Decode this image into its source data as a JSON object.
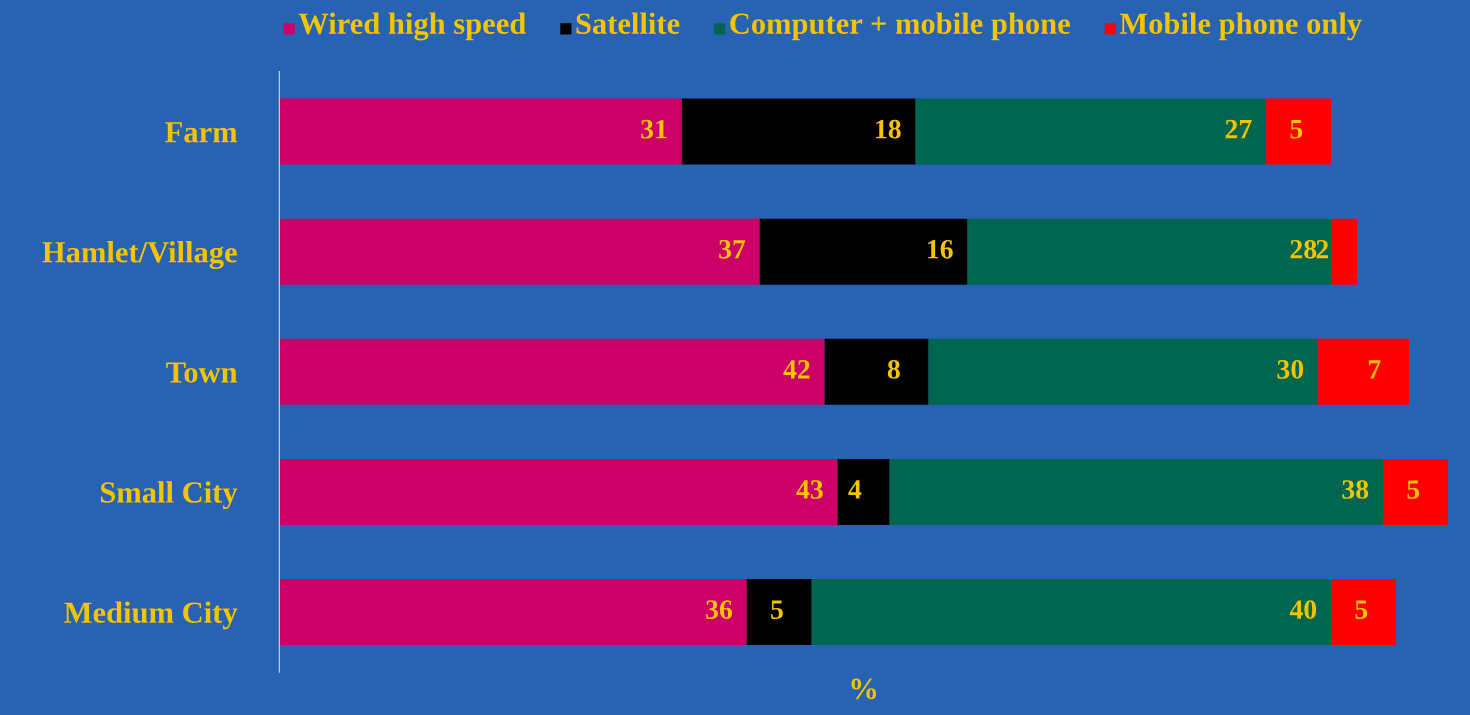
{
  "chart_data": {
    "type": "bar",
    "orientation": "horizontal",
    "stacked": true,
    "data_labels": true,
    "tick_labels": "y",
    "legend": "top",
    "grid": false,
    "xlabel": "%",
    "xlim": [
      0,
      90
    ],
    "categories": [
      "Farm",
      "Hamlet/Village",
      "Town",
      "Small City",
      "Medium City"
    ],
    "series": [
      {
        "name": "Wired high speed",
        "color": "#cc0066",
        "values": [
          31,
          37,
          42,
          43,
          36
        ]
      },
      {
        "name": "Satellite",
        "color": "#000000",
        "values": [
          18,
          16,
          8,
          4,
          5
        ]
      },
      {
        "name": "Computer + mobile phone",
        "color": "#00664f",
        "values": [
          27,
          28,
          30,
          38,
          40
        ]
      },
      {
        "name": "Mobile phone only",
        "color": "#ff0000",
        "values": [
          5,
          2,
          7,
          5,
          5
        ]
      }
    ]
  }
}
